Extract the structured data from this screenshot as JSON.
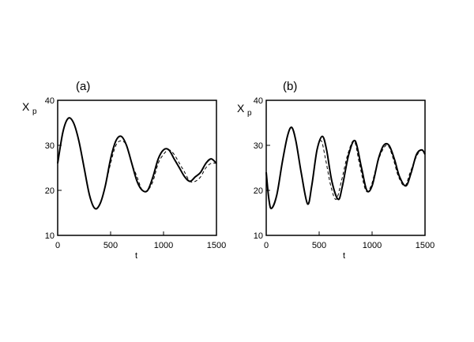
{
  "chart_data": [
    {
      "type": "line",
      "panel_label": "(a)",
      "ylabel": "X",
      "ylabel_sub": "p",
      "xlabel": "t",
      "xlim": [
        0,
        1500
      ],
      "ylim": [
        10,
        40
      ],
      "xticks": [
        "0",
        "500",
        "1000",
        "1500"
      ],
      "yticks": [
        "10",
        "20",
        "30",
        "40"
      ],
      "grid": false,
      "series": [
        {
          "style": "solid",
          "x": [
            0,
            50,
            100,
            150,
            200,
            250,
            300,
            350,
            400,
            450,
            500,
            550,
            600,
            650,
            700,
            750,
            800,
            850,
            900,
            950,
            1000,
            1050,
            1100,
            1150,
            1200,
            1250,
            1300,
            1350,
            1400,
            1450,
            1500
          ],
          "y": [
            26,
            33,
            36,
            35,
            31,
            25,
            19,
            16,
            17,
            21,
            27,
            31,
            32,
            30,
            26,
            22,
            20,
            20,
            23,
            27,
            29,
            29,
            27,
            25,
            23,
            22,
            23,
            24,
            26,
            27,
            26
          ]
        },
        {
          "style": "dashed",
          "x": [
            0,
            50,
            100,
            150,
            200,
            250,
            300,
            350,
            400,
            450,
            500,
            550,
            600,
            650,
            700,
            750,
            800,
            850,
            900,
            950,
            1000,
            1050,
            1100,
            1150,
            1200,
            1250,
            1300,
            1350,
            1400,
            1450,
            1500
          ],
          "y": [
            26,
            33,
            36,
            35,
            31,
            25,
            19,
            16,
            17,
            21,
            26,
            30,
            31,
            30,
            26,
            23,
            20,
            20,
            22,
            26,
            28,
            29,
            28,
            26,
            24,
            22,
            22,
            23,
            25,
            26,
            26
          ]
        }
      ]
    },
    {
      "type": "line",
      "panel_label": "(b)",
      "ylabel": "X",
      "ylabel_sub": "p",
      "xlabel": "t",
      "xlim": [
        0,
        1500
      ],
      "ylim": [
        10,
        40
      ],
      "xticks": [
        "0",
        "500",
        "1000",
        "1500"
      ],
      "yticks": [
        "10",
        "20",
        "30",
        "40"
      ],
      "grid": false,
      "series": [
        {
          "style": "solid",
          "x": [
            0,
            25,
            50,
            100,
            150,
            200,
            240,
            280,
            330,
            390,
            430,
            480,
            530,
            570,
            620,
            680,
            720,
            780,
            840,
            900,
            950,
            1000,
            1060,
            1110,
            1160,
            1210,
            1260,
            1320,
            1370,
            1420,
            1470,
            1500
          ],
          "y": [
            24,
            18,
            16,
            19,
            26,
            32,
            34,
            31,
            24,
            17,
            21,
            29,
            32,
            29,
            22,
            18,
            21,
            28,
            31,
            25,
            20,
            21,
            27,
            30,
            30,
            27,
            23,
            21,
            24,
            28,
            29,
            28
          ]
        },
        {
          "style": "dashed",
          "x": [
            0,
            25,
            50,
            100,
            150,
            200,
            240,
            280,
            330,
            390,
            430,
            480,
            520,
            560,
            610,
            660,
            710,
            770,
            830,
            880,
            940,
            990,
            1050,
            1100,
            1150,
            1200,
            1250,
            1310,
            1360,
            1410,
            1460,
            1500
          ],
          "y": [
            24,
            18,
            16,
            19,
            26,
            32,
            34,
            31,
            24,
            17,
            21,
            29,
            31,
            27,
            21,
            18,
            22,
            28,
            31,
            26,
            20,
            21,
            26,
            29,
            30,
            27,
            23,
            21,
            24,
            27,
            29,
            28
          ]
        }
      ]
    }
  ]
}
